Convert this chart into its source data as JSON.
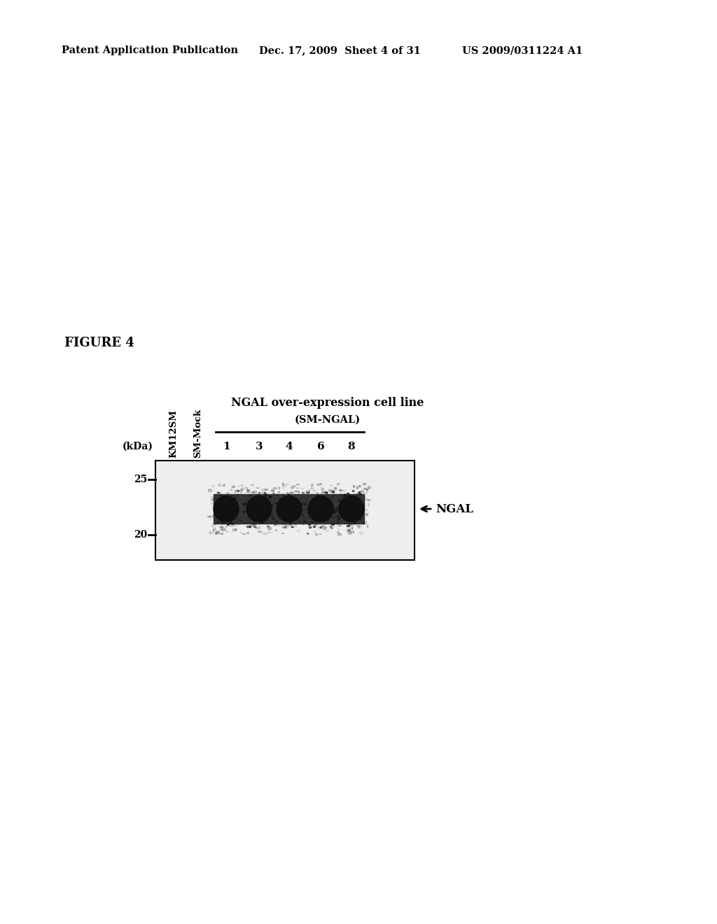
{
  "header_left": "Patent Application Publication",
  "header_mid": "Dec. 17, 2009  Sheet 4 of 31",
  "header_right": "US 2009/0311224 A1",
  "figure_label": "FIGURE 4",
  "kdal_label": "(kDa)",
  "lane_labels_rotated": [
    "KM12SM",
    "SM-Mock"
  ],
  "ngal_group_label": "NGAL over-expression cell line",
  "ngal_sub_label": "(SM-NGAL)",
  "lane_numbers": [
    "1",
    "3",
    "4",
    "6",
    "8"
  ],
  "mw_markers": [
    "25",
    "20"
  ],
  "background_color": "#ffffff",
  "gel_border_color": "#000000",
  "band_color": "#1a1a1a"
}
